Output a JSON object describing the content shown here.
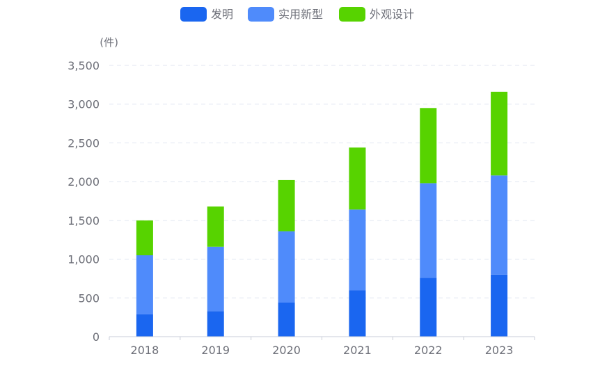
{
  "chart_data": {
    "type": "bar",
    "stacked": true,
    "unit_label": "(件)",
    "categories": [
      "2018",
      "2019",
      "2020",
      "2021",
      "2022",
      "2023"
    ],
    "series": [
      {
        "name": "发明",
        "color": "#1a66f0",
        "values": [
          290,
          330,
          440,
          600,
          760,
          800
        ]
      },
      {
        "name": "实用新型",
        "color": "#4f8bfb",
        "values": [
          760,
          830,
          920,
          1040,
          1220,
          1280
        ]
      },
      {
        "name": "外观设计",
        "color": "#57d300",
        "values": [
          450,
          520,
          660,
          800,
          970,
          1080
        ]
      }
    ],
    "ylim": [
      0,
      3500
    ],
    "yticks": [
      0,
      500,
      1000,
      1500,
      2000,
      2500,
      3000,
      3500
    ],
    "ytick_labels": [
      "0",
      "500",
      "1,000",
      "1,500",
      "2,000",
      "2,500",
      "3,000",
      "3,500"
    ],
    "grid": true,
    "legend_position": "top-center"
  }
}
